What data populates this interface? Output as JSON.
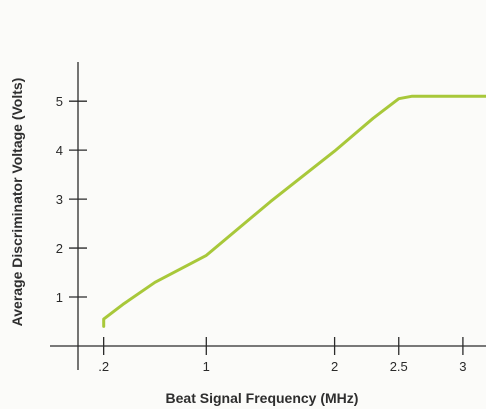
{
  "chart_data": {
    "type": "line",
    "title": "",
    "xlabel": "Beat Signal Frequency (MHz)",
    "ylabel": "Average Discriminator Voltage (Volts)",
    "x_ticks": [
      {
        "value": 0.2,
        "label": ".2"
      },
      {
        "value": 1,
        "label": "1"
      },
      {
        "value": 2,
        "label": "2"
      },
      {
        "value": 2.5,
        "label": "2.5"
      },
      {
        "value": 3,
        "label": "3"
      }
    ],
    "y_ticks": [
      {
        "value": 1,
        "label": "1"
      },
      {
        "value": 2,
        "label": "2"
      },
      {
        "value": 3,
        "label": "3"
      },
      {
        "value": 4,
        "label": "4"
      },
      {
        "value": 5,
        "label": "5"
      }
    ],
    "xlim": [
      0,
      3.18
    ],
    "ylim": [
      0,
      5.8
    ],
    "grid": false,
    "colors": {
      "series": "#a8c83a",
      "axis": "#2b2b2b"
    },
    "series": [
      {
        "x": [
          0.2,
          0.2,
          0.35,
          0.6,
          1.0,
          1.5,
          2.0,
          2.3,
          2.5,
          2.6,
          2.8,
          3.0,
          3.18
        ],
        "y": [
          0.4,
          0.55,
          0.85,
          1.3,
          1.85,
          2.95,
          3.98,
          4.65,
          5.05,
          5.1,
          5.1,
          5.1,
          5.1
        ]
      }
    ]
  }
}
